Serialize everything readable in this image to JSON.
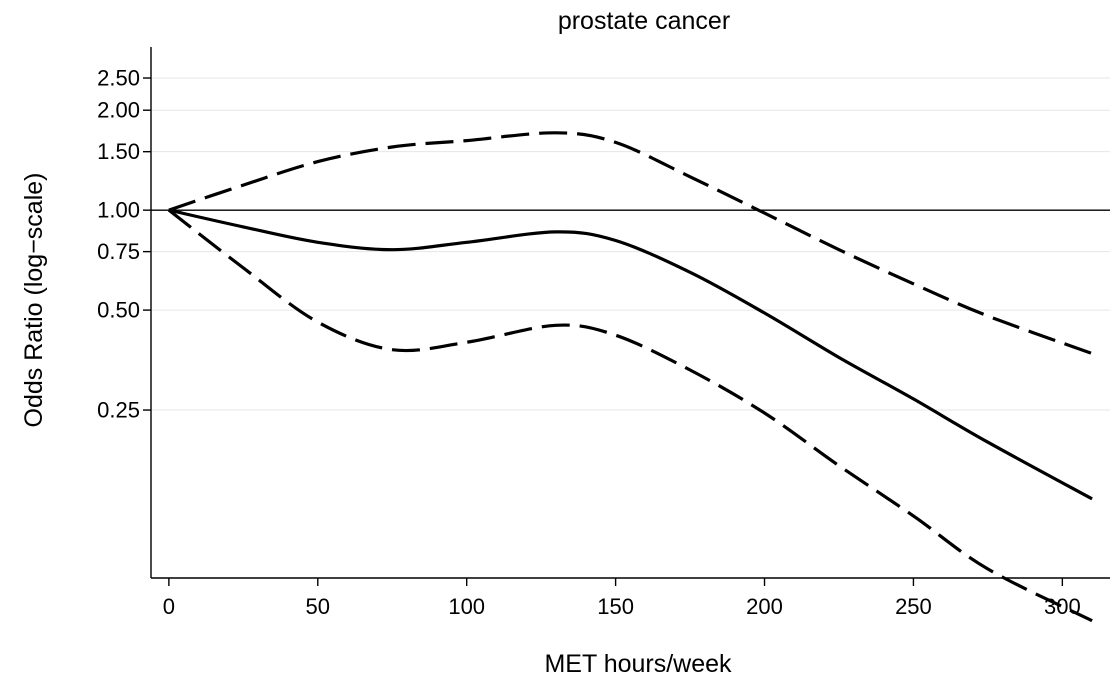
{
  "chart_data": {
    "type": "line",
    "title": "prostate cancer",
    "xlabel": "MET hours/week",
    "ylabel": "Odds Ratio (log−scale)",
    "xlim": [
      -6,
      316
    ],
    "ylim": [
      0.078,
      3.1
    ],
    "y_scale": "log",
    "grid": true,
    "legend": "none",
    "x_ticks": [
      0,
      50,
      100,
      150,
      200,
      250,
      300
    ],
    "x_tick_labels": [
      "0",
      "50",
      "100",
      "150",
      "200",
      "250",
      "300"
    ],
    "y_ticks": [
      0.25,
      0.5,
      0.75,
      1.0,
      1.5,
      2.0,
      2.5
    ],
    "y_tick_labels": [
      "0.25",
      "0.50",
      "0.75",
      "1.00",
      "1.50",
      "2.00",
      "2.50"
    ],
    "reference_line": {
      "y": 1.0
    },
    "x": [
      0,
      25,
      50,
      75,
      100,
      130,
      150,
      175,
      200,
      225,
      250,
      275,
      310
    ],
    "series": [
      {
        "style": "solid",
        "values": [
          1.0,
          0.89,
          0.8,
          0.76,
          0.8,
          0.86,
          0.81,
          0.65,
          0.49,
          0.36,
          0.27,
          0.2,
          0.135
        ]
      },
      {
        "style": "dashed",
        "values": [
          1.0,
          1.19,
          1.4,
          1.55,
          1.62,
          1.71,
          1.6,
          1.26,
          0.98,
          0.76,
          0.6,
          0.48,
          0.37
        ]
      },
      {
        "style": "dashed",
        "values": [
          1.0,
          0.67,
          0.46,
          0.38,
          0.4,
          0.45,
          0.42,
          0.33,
          0.245,
          0.17,
          0.12,
          0.083,
          0.058
        ]
      }
    ]
  }
}
